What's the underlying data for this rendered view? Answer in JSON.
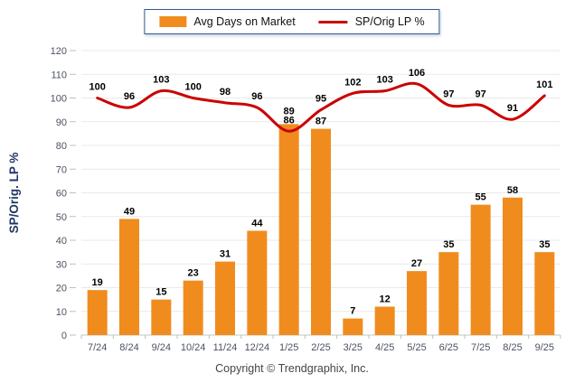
{
  "legend": {
    "items": [
      {
        "label": "Avg Days on Market",
        "swatch": "bar",
        "color": "#F08C1E"
      },
      {
        "label": "SP/Orig LP %",
        "swatch": "line",
        "color": "#CC0000"
      }
    ]
  },
  "footer": {
    "copyright": "Copyright © Trendgraphix, Inc."
  },
  "chart_data": {
    "type": "bar",
    "categories": [
      "7/24",
      "8/24",
      "9/24",
      "10/24",
      "11/24",
      "12/24",
      "1/25",
      "2/25",
      "3/25",
      "4/25",
      "5/25",
      "6/25",
      "7/25",
      "8/25",
      "9/25"
    ],
    "series": [
      {
        "name": "Avg Days on Market",
        "type": "bar",
        "color": "#F08C1E",
        "values": [
          19,
          49,
          15,
          23,
          31,
          44,
          89,
          87,
          7,
          12,
          27,
          35,
          55,
          58,
          35
        ]
      },
      {
        "name": "SP/Orig LP %",
        "type": "line",
        "color": "#CC0000",
        "values": [
          100,
          96,
          103,
          100,
          98,
          96,
          86,
          95,
          102,
          103,
          106,
          97,
          97,
          91,
          101
        ]
      }
    ],
    "title": "",
    "xlabel": "",
    "ylabel": "SP/Orig. LP %",
    "ylim": [
      0,
      120
    ],
    "ytick_step": 10,
    "grid": "horizontal",
    "legend_position": "top-center",
    "data_labels": true,
    "colors": {
      "gridline": "#E9E9E9",
      "axis": "#C6C6C6",
      "tick_mark": "#BFBFBF",
      "tick_label": "#4A5262",
      "data_label": "#000000",
      "axis_title": "#1F3864",
      "legend_border": "#2F5B93"
    }
  }
}
